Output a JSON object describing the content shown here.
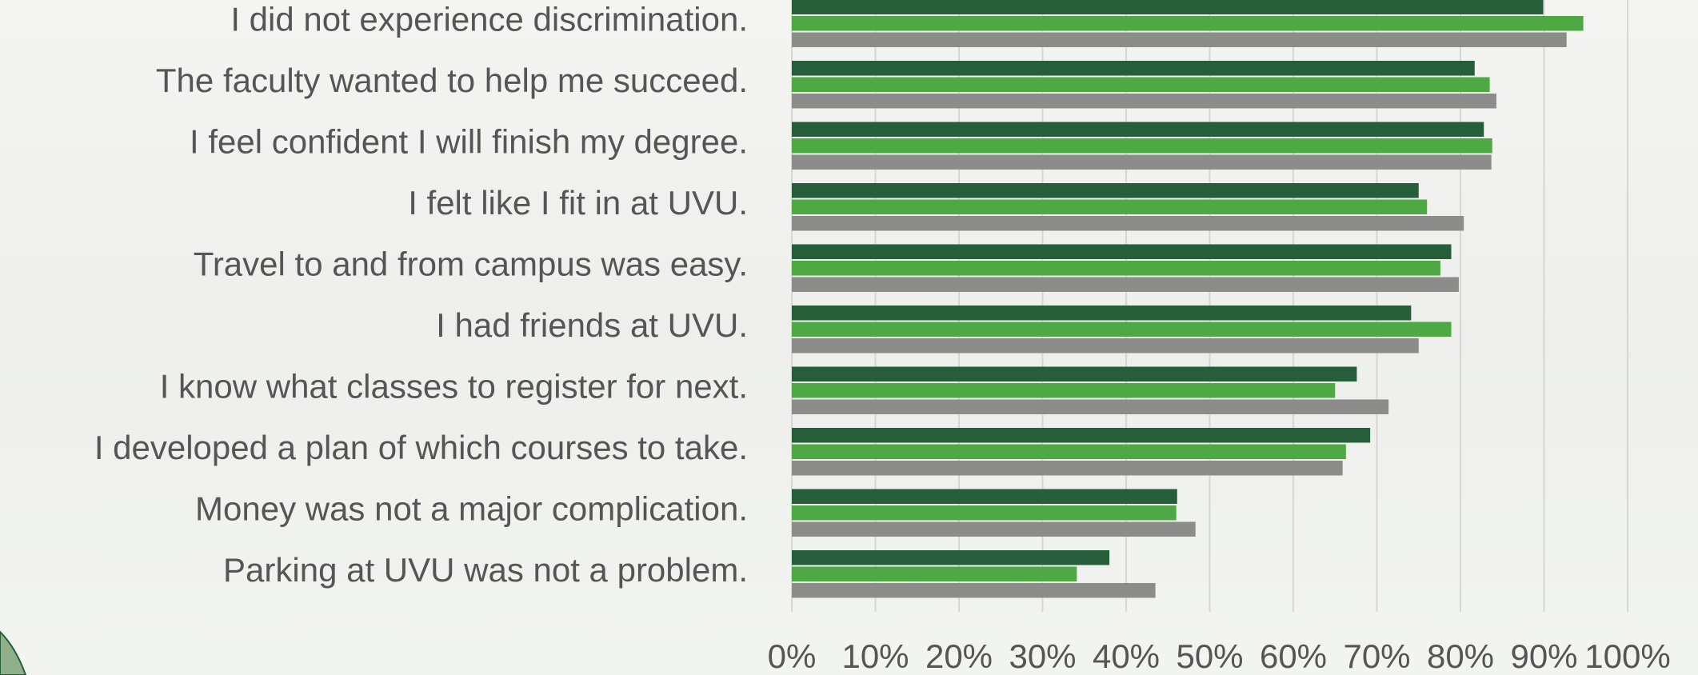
{
  "chart_data": {
    "type": "hbar",
    "categories": [
      "I did not experience discrimination.",
      "The faculty wanted to help me succeed.",
      "I feel confident I will finish my degree.",
      "I felt like I fit in at UVU.",
      "Travel to and from campus was easy.",
      "I had friends at UVU.",
      "I know what classes to register for next.",
      "I developed a plan of which courses to take.",
      "Money was not a major complication.",
      "Parking at UVU was not a problem."
    ],
    "series": [
      {
        "color": "#255e38",
        "values": [
          89.9,
          81.7,
          82.8,
          75.0,
          78.9,
          74.1,
          67.6,
          69.2,
          46.1,
          38.0
        ]
      },
      {
        "color": "#4ea843",
        "values": [
          94.7,
          83.5,
          83.8,
          76.0,
          77.6,
          78.9,
          65.0,
          66.3,
          46.0,
          34.1
        ]
      },
      {
        "color": "#8c8c8a",
        "values": [
          92.7,
          84.3,
          83.7,
          80.4,
          79.8,
          75.0,
          71.4,
          65.9,
          48.3,
          43.5
        ]
      }
    ],
    "xlim": [
      0,
      100
    ],
    "xticks": [
      {
        "value": 0,
        "label": "0%"
      },
      {
        "value": 10,
        "label": "10%"
      },
      {
        "value": 20,
        "label": "20%"
      },
      {
        "value": 30,
        "label": "30%"
      },
      {
        "value": 40,
        "label": "40%"
      },
      {
        "value": 50,
        "label": "50%"
      },
      {
        "value": 60,
        "label": "60%"
      },
      {
        "value": 70,
        "label": "70%"
      },
      {
        "value": 80,
        "label": "80%"
      },
      {
        "value": 90,
        "label": "90%"
      },
      {
        "value": 100,
        "label": "100%"
      }
    ],
    "grid": true
  }
}
